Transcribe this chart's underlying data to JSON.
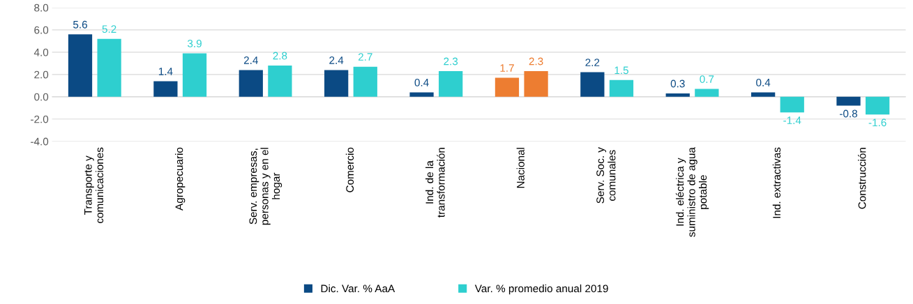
{
  "chart_data": {
    "type": "bar",
    "categories": [
      "Transporte y\ncomunicaciones",
      "Agropecuario",
      "Serv. empresas,\npersonas y en el\nhogar",
      "Comercio",
      "Ind. de la\ntransformación",
      "Nacional",
      "Serv. Soc. y\ncomunales",
      "Ind. eléctrica y\nsuministro de agua\npotable",
      "Ind. extractivas",
      "Construcción"
    ],
    "series": [
      {
        "name": "Dic. Var. % AaA",
        "color": "#0b4a84",
        "colors": [
          "#0b4a84",
          "#0b4a84",
          "#0b4a84",
          "#0b4a84",
          "#0b4a84",
          "#ed7d31",
          "#0b4a84",
          "#0b4a84",
          "#0b4a84",
          "#0b4a84"
        ],
        "values": [
          5.6,
          1.4,
          2.4,
          2.4,
          0.4,
          1.7,
          2.2,
          0.3,
          0.4,
          -0.8
        ]
      },
      {
        "name": "Var. % promedio anual 2019",
        "color": "#2ecfcf",
        "colors": [
          "#2ecfcf",
          "#2ecfcf",
          "#2ecfcf",
          "#2ecfcf",
          "#2ecfcf",
          "#ed7d31",
          "#2ecfcf",
          "#2ecfcf",
          "#2ecfcf",
          "#2ecfcf"
        ],
        "values": [
          5.2,
          3.9,
          2.8,
          2.7,
          2.3,
          2.3,
          1.5,
          0.7,
          -1.4,
          -1.6
        ]
      }
    ],
    "ylim": [
      -4,
      8
    ],
    "yticks": [
      {
        "value": -4,
        "label": "-4.0"
      },
      {
        "value": -2,
        "label": "-2.0"
      },
      {
        "value": 0,
        "label": "0.0"
      },
      {
        "value": 2,
        "label": "2.0"
      },
      {
        "value": 4,
        "label": "4.0"
      },
      {
        "value": 6,
        "label": "6.0"
      },
      {
        "value": 8,
        "label": "8.0"
      }
    ],
    "grid": "y",
    "legend": "bottom",
    "data_labels": true
  }
}
